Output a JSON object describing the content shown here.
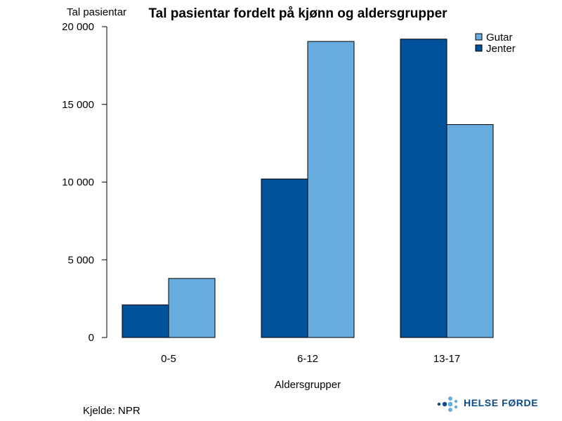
{
  "chart_data": {
    "type": "bar",
    "title": "Tal pasientar fordelt på kjønn og aldersgrupper",
    "ylabel": "Tal pasientar",
    "xlabel": "Aldersgrupper",
    "categories": [
      "0-5",
      "6-12",
      "13-17"
    ],
    "series": [
      {
        "name": "Jenter",
        "color": "#00529b",
        "values": [
          2100,
          10200,
          19200
        ]
      },
      {
        "name": "Gutar",
        "color": "#67ade0",
        "values": [
          3800,
          19050,
          13700
        ]
      }
    ],
    "ylim": [
      0,
      20000
    ],
    "yticks": [
      0,
      5000,
      10000,
      15000,
      20000
    ],
    "ytick_labels": [
      "0",
      "5 000",
      "10 000",
      "15 000",
      "20 000"
    ],
    "legend_position": "top-right",
    "legend_order": [
      "Gutar",
      "Jenter"
    ],
    "grid": false
  },
  "footer": {
    "source": "Kjelde: NPR",
    "logo_text": "HELSE FØRDE"
  }
}
